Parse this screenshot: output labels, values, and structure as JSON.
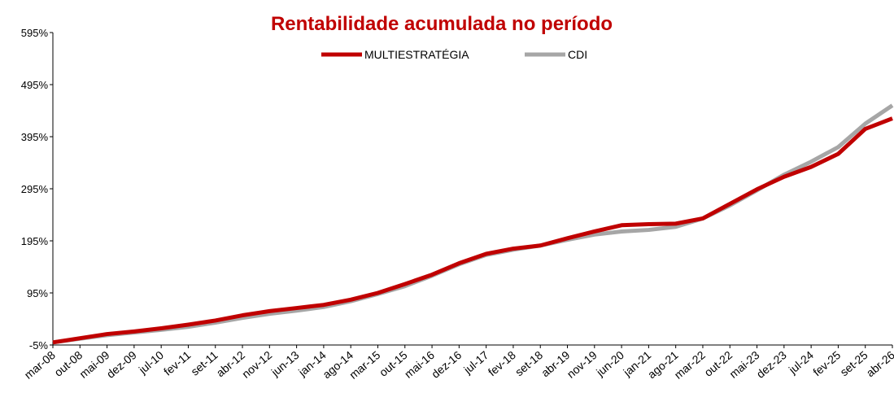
{
  "chart_data": {
    "type": "line",
    "title": "Rentabilidade acumulada no período",
    "categories": [
      "mar-08",
      "out-08",
      "mai-09",
      "dez-09",
      "jul-10",
      "fev-11",
      "set-11",
      "abr-12",
      "nov-12",
      "jun-13",
      "jan-14",
      "ago-14",
      "mar-15",
      "out-15",
      "mai-16",
      "dez-16",
      "jul-17",
      "fev-18",
      "set-18",
      "abr-19",
      "nov-19",
      "jun-20",
      "jan-21",
      "ago-21",
      "mar-22",
      "out-22",
      "mai-23",
      "dez-23",
      "jul-24",
      "fev-25",
      "set-25",
      "abr-26"
    ],
    "series": [
      {
        "name": "MULTIESTRATÉGIA",
        "color": "#c00000",
        "values": [
          0,
          8,
          16,
          21,
          27,
          34,
          42,
          52,
          60,
          66,
          72,
          82,
          95,
          112,
          130,
          152,
          170,
          180,
          186,
          200,
          213,
          225,
          227,
          228,
          238,
          266,
          294,
          318,
          337,
          362,
          410,
          430
        ]
      },
      {
        "name": "CDI",
        "color": "#a6a6a6",
        "values": [
          0,
          7,
          14,
          19,
          24,
          30,
          38,
          47,
          55,
          61,
          68,
          79,
          93,
          108,
          128,
          150,
          168,
          178,
          186,
          197,
          207,
          213,
          216,
          222,
          238,
          263,
          292,
          322,
          347,
          375,
          420,
          455
        ]
      }
    ],
    "ylim": [
      -5,
      595
    ],
    "yticks": [
      {
        "value": -5,
        "label": "-5%"
      },
      {
        "value": 95,
        "label": "95%"
      },
      {
        "value": 195,
        "label": "195%"
      },
      {
        "value": 295,
        "label": "295%"
      },
      {
        "value": 395,
        "label": "395%"
      },
      {
        "value": 495,
        "label": "495%"
      },
      {
        "value": 595,
        "label": "595%"
      }
    ],
    "legend": "top"
  }
}
